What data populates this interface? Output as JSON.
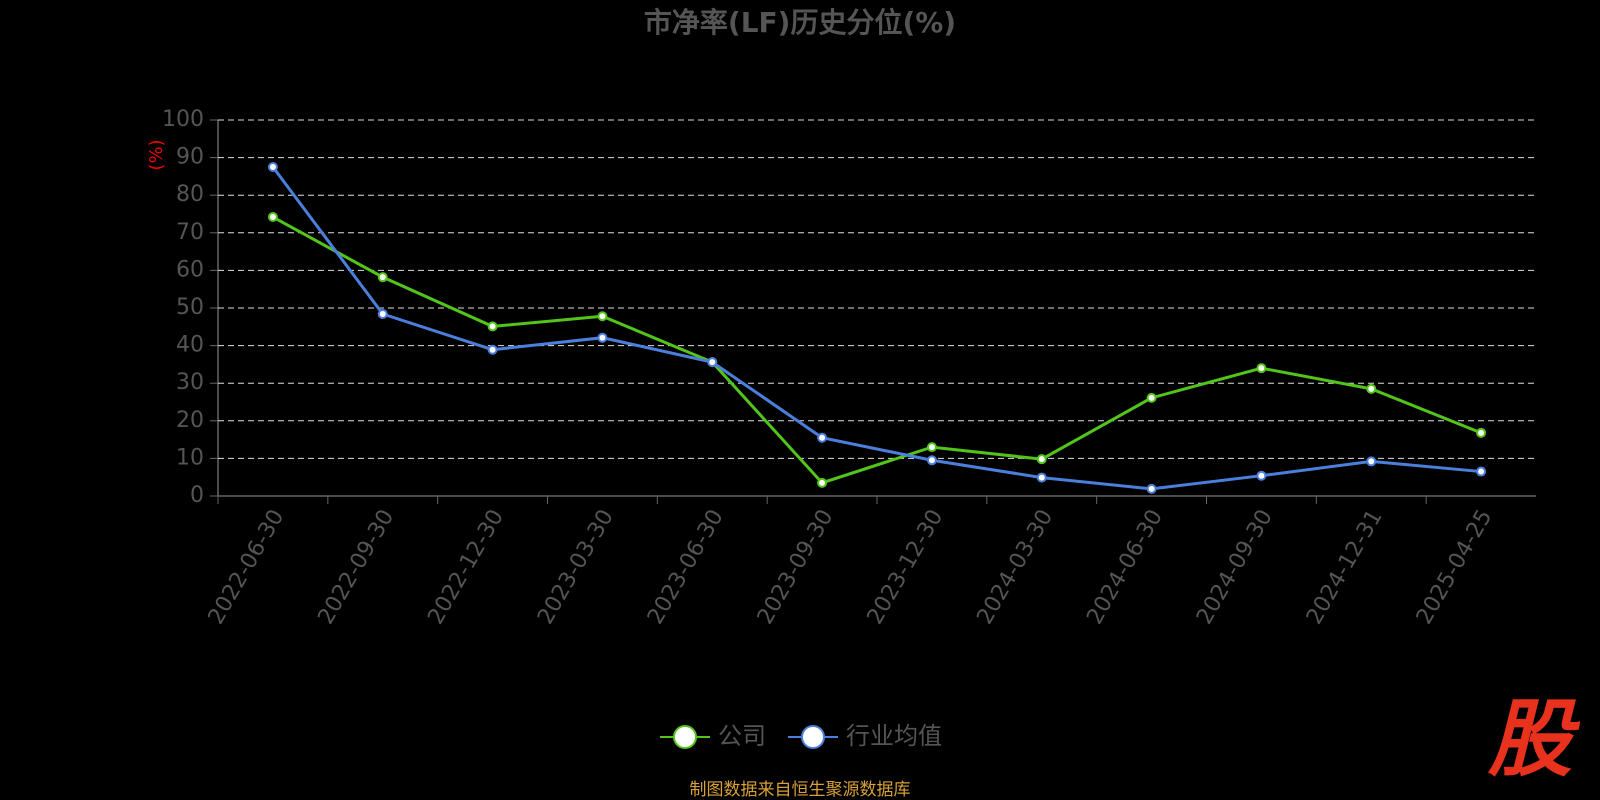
{
  "chart_data": {
    "type": "line",
    "title": "市净率(LF)历史分位(%)",
    "y_label": "(%)",
    "categories": [
      "2022-06-30",
      "2022-09-30",
      "2022-12-30",
      "2023-03-30",
      "2023-06-30",
      "2023-09-30",
      "2023-12-30",
      "2024-03-30",
      "2024-06-30",
      "2024-09-30",
      "2024-12-31",
      "2025-04-25"
    ],
    "series": [
      {
        "name": "公司",
        "color": "#52c41a",
        "values": [
          74.2,
          58.2,
          45.1,
          47.8,
          35.6,
          3.5,
          13.0,
          9.8,
          26.1,
          34.0,
          28.5,
          16.8
        ]
      },
      {
        "name": "行业均值",
        "color": "#4a7fdc",
        "values": [
          87.5,
          48.4,
          38.9,
          42.1,
          35.6,
          15.5,
          9.5,
          4.9,
          1.9,
          5.4,
          9.2,
          6.5
        ]
      }
    ],
    "ylim": [
      0,
      100
    ],
    "yticks": [
      0,
      10,
      20,
      30,
      40,
      50,
      60,
      70,
      80,
      90,
      100
    ],
    "grid": true,
    "legend": "bottom",
    "source": "制图数据来自恒生聚源数据库",
    "watermark": "股"
  }
}
